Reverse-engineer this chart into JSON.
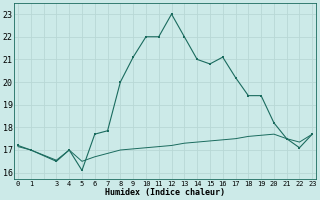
{
  "xlabel": "Humidex (Indice chaleur)",
  "background_color": "#cceae8",
  "line_color": "#1a6b5e",
  "grid_color": "#b8d8d5",
  "line1_x": [
    0,
    1,
    3,
    4,
    5,
    6,
    7,
    8,
    9,
    10,
    11,
    12,
    13,
    14,
    15,
    16,
    17,
    18,
    19,
    20,
    21,
    22,
    23
  ],
  "line1_y": [
    17.2,
    17.0,
    16.5,
    17.0,
    16.1,
    17.7,
    17.85,
    20.0,
    21.1,
    22.0,
    22.0,
    23.0,
    22.0,
    21.0,
    20.8,
    21.1,
    20.2,
    19.4,
    19.4,
    18.2,
    17.5,
    17.1,
    17.7
  ],
  "line2_x": [
    0,
    1,
    3,
    4,
    5,
    6,
    7,
    8,
    9,
    10,
    11,
    12,
    13,
    14,
    15,
    16,
    17,
    18,
    19,
    20,
    21,
    22,
    23
  ],
  "line2_y": [
    17.15,
    17.0,
    16.55,
    17.0,
    16.5,
    16.7,
    16.85,
    17.0,
    17.05,
    17.1,
    17.15,
    17.2,
    17.3,
    17.35,
    17.4,
    17.45,
    17.5,
    17.6,
    17.65,
    17.7,
    17.5,
    17.35,
    17.7
  ],
  "ylim": [
    15.7,
    23.5
  ],
  "yticks": [
    16,
    17,
    18,
    19,
    20,
    21,
    22,
    23
  ],
  "xtick_labels": [
    "0",
    "1",
    "",
    "3",
    "4",
    "5",
    "6",
    "7",
    "8",
    "9",
    "10",
    "11",
    "12",
    "13",
    "14",
    "15",
    "16",
    "17",
    "18",
    "19",
    "20",
    "21",
    "22",
    "23"
  ],
  "xtick_positions": [
    0,
    1,
    2,
    3,
    4,
    5,
    6,
    7,
    8,
    9,
    10,
    11,
    12,
    13,
    14,
    15,
    16,
    17,
    18,
    19,
    20,
    21,
    22,
    23
  ],
  "xlim": [
    -0.3,
    23.3
  ]
}
